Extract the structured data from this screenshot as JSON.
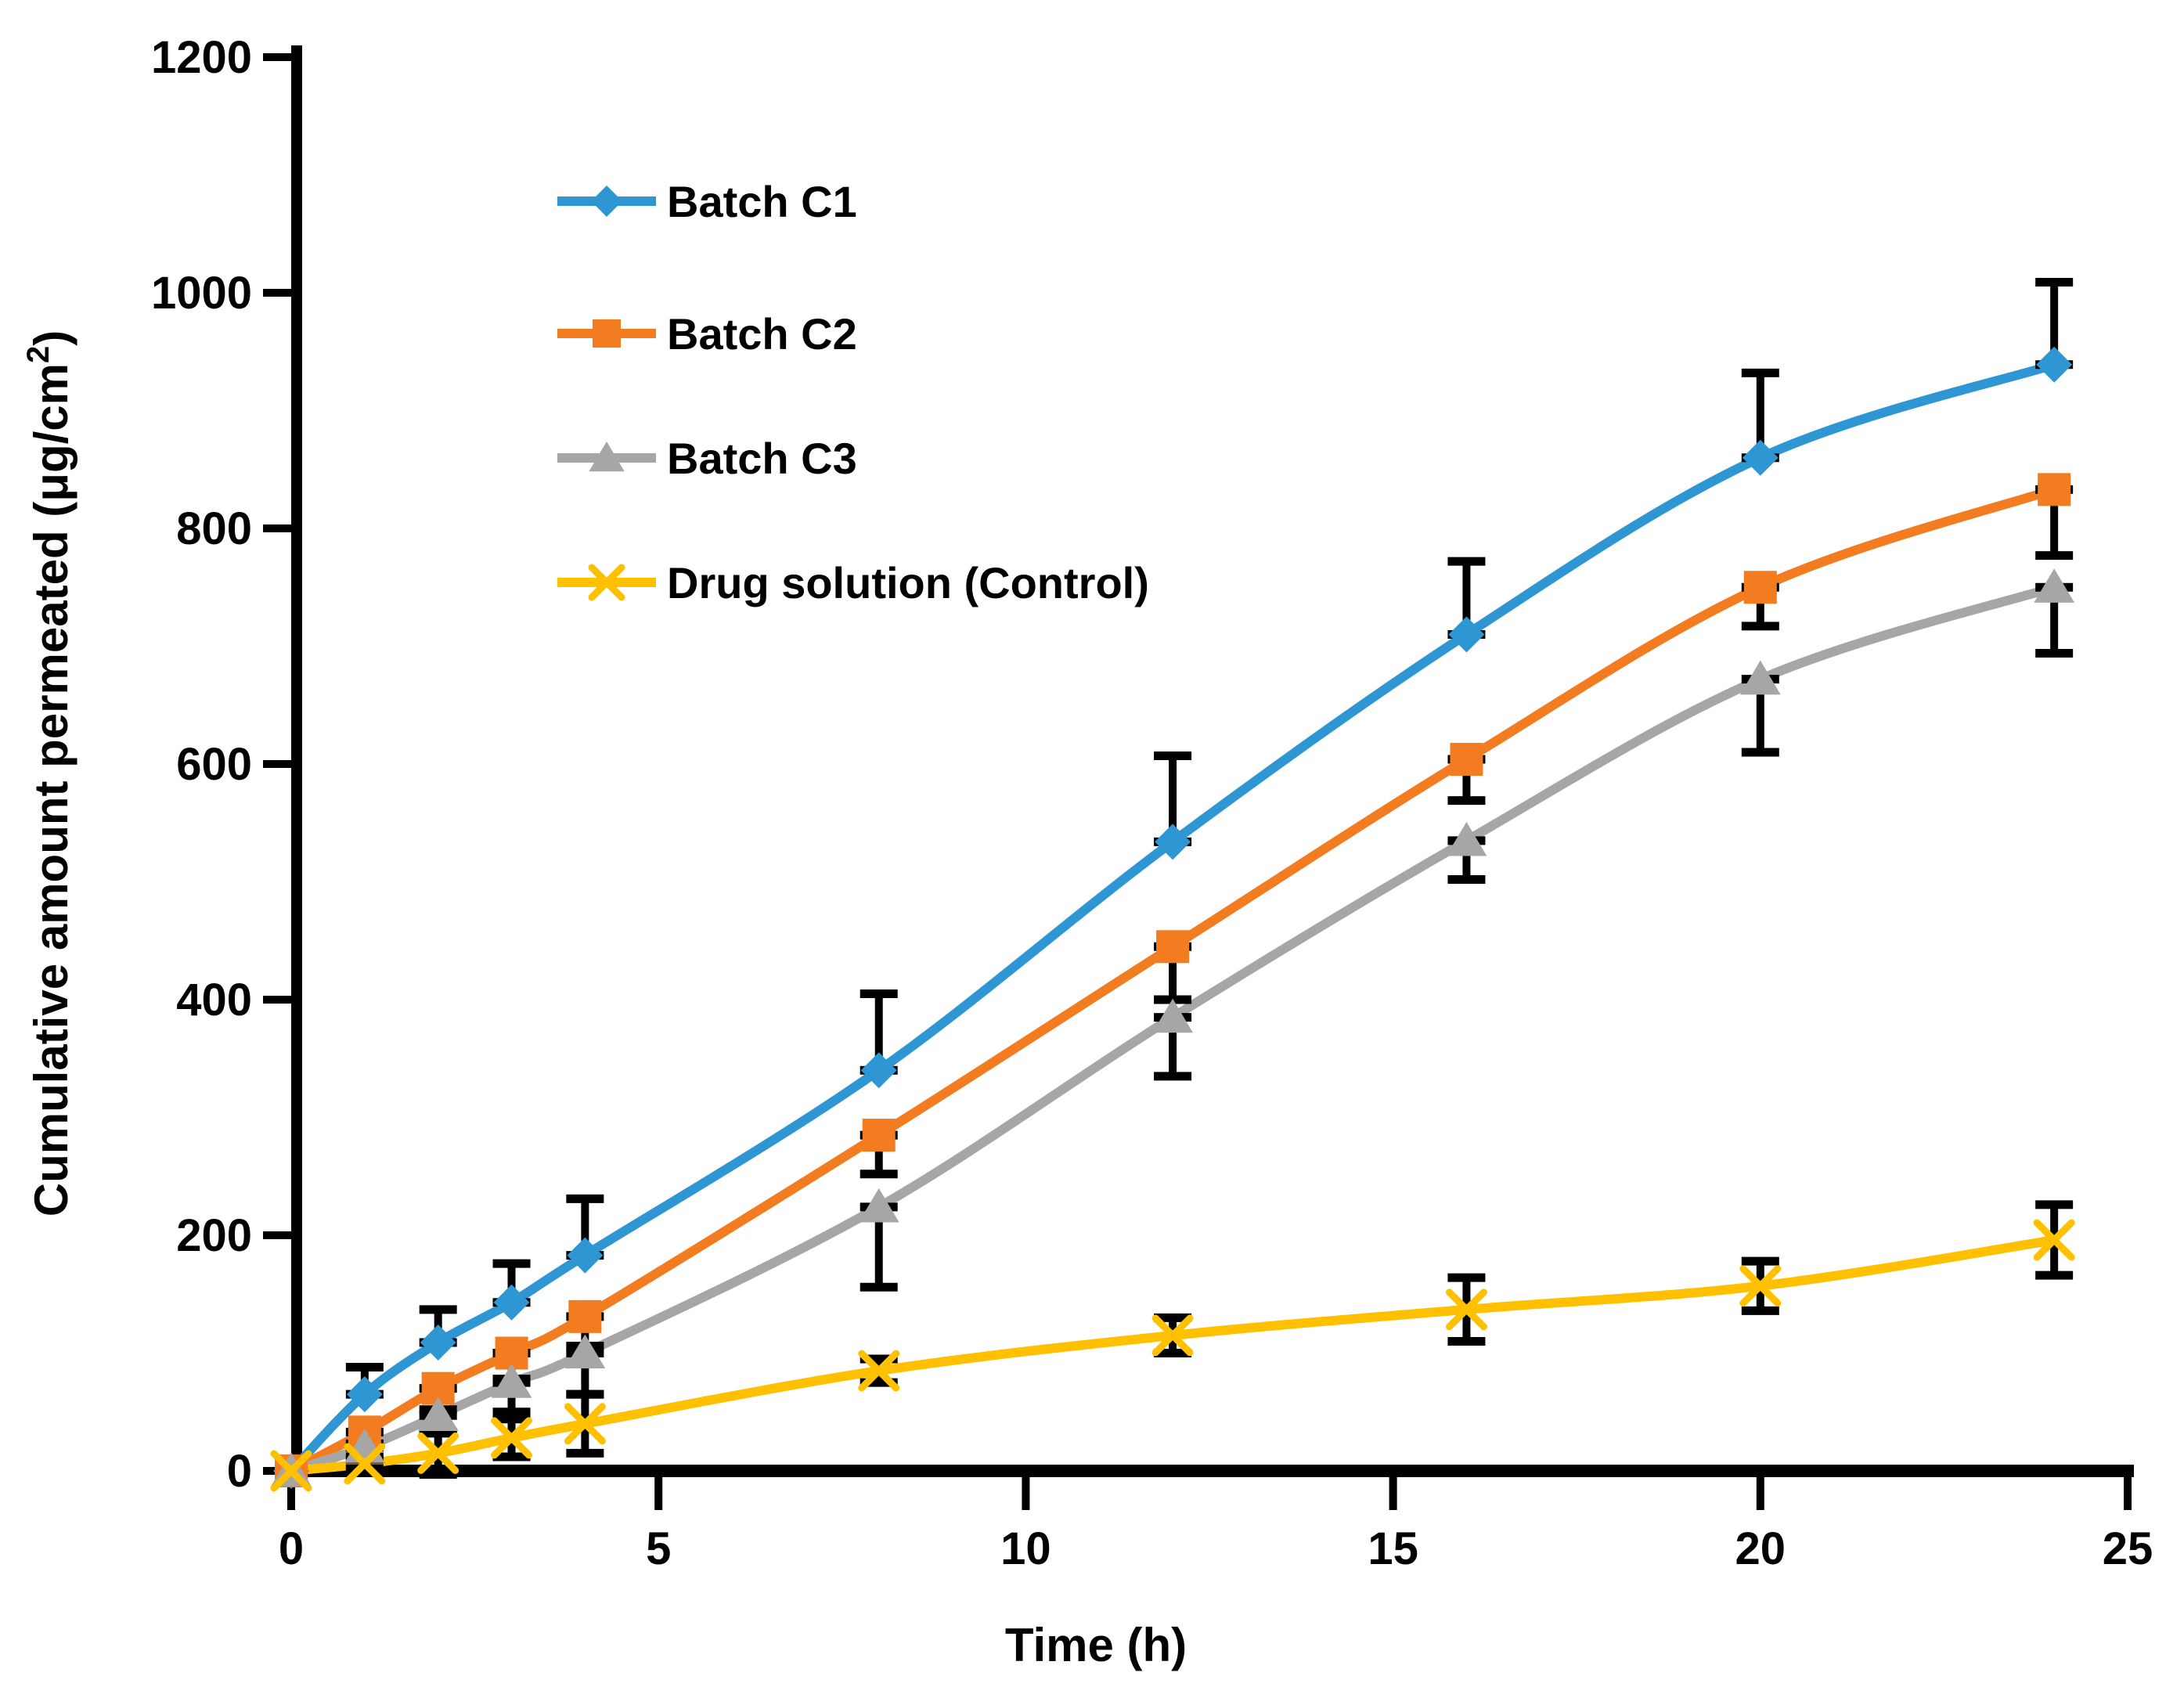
{
  "chart_data": {
    "type": "line",
    "title": "",
    "xlabel": "Time (h)",
    "ylabel": {
      "base": "Cumulative amount permeated (μg/cm",
      "sup": "2",
      "end": ")"
    },
    "x": [
      0,
      1,
      2,
      3,
      4,
      8,
      12,
      16,
      20,
      24
    ],
    "x_ticks": [
      0,
      5,
      10,
      15,
      20,
      25
    ],
    "y_ticks": [
      0,
      200,
      400,
      600,
      800,
      1000,
      1200
    ],
    "xlim": [
      0,
      25
    ],
    "ylim": [
      0,
      1200
    ],
    "grid": false,
    "legend_position": "inside-upper-left",
    "background_color": "#FFFFFF",
    "axis_color": "#000000",
    "error_bar_color": "#000000",
    "series": [
      {
        "name": "Batch C1",
        "color": "#2E97D3",
        "marker": "diamond",
        "error_direction": "up",
        "values": [
          0,
          65,
          109,
          143,
          183,
          340,
          534,
          710,
          860,
          939
        ],
        "errors": [
          0,
          23,
          28,
          33,
          48,
          65,
          73,
          62,
          72,
          70
        ]
      },
      {
        "name": "Batch C2",
        "color": "#F47C20",
        "marker": "square",
        "error_direction": "down",
        "values": [
          0,
          33,
          70,
          100,
          131,
          285,
          445,
          604,
          750,
          833
        ],
        "errors": [
          0,
          10,
          18,
          22,
          25,
          33,
          45,
          35,
          33,
          56
        ]
      },
      {
        "name": "Batch C3",
        "color": "#A6A6A6",
        "marker": "triangle",
        "error_direction": "down",
        "values": [
          0,
          20,
          47,
          75,
          100,
          224,
          385,
          535,
          672,
          750
        ],
        "errors": [
          0,
          8,
          15,
          25,
          35,
          68,
          50,
          33,
          62,
          56
        ]
      },
      {
        "name": "Drug solution (Control)",
        "color": "#FFC000",
        "marker": "x",
        "error_direction": "both",
        "values": [
          0,
          6,
          15,
          28,
          40,
          85,
          115,
          137,
          157,
          196
        ],
        "errors": [
          0,
          4,
          18,
          16,
          25,
          10,
          15,
          27,
          21,
          30
        ]
      }
    ]
  }
}
